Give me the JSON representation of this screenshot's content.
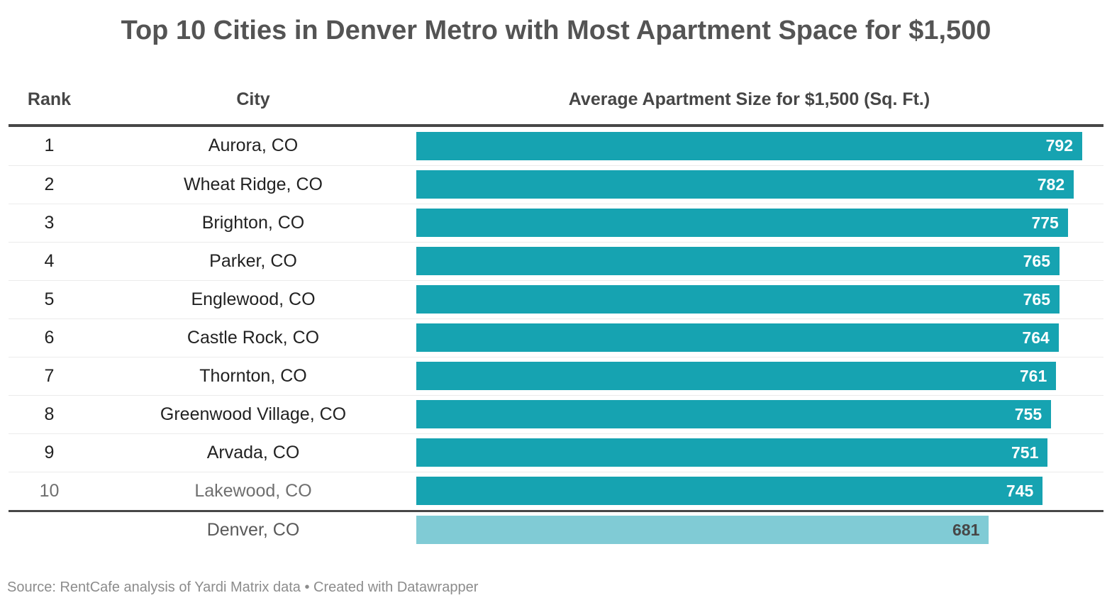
{
  "title": "Top 10 Cities in Denver Metro with Most Apartment Space for $1,500",
  "chart_data": {
    "type": "bar",
    "title": "Top 10 Cities in Denver Metro with Most Apartment Space for $1,500",
    "columns": [
      "Rank",
      "City",
      "Average Apartment Size for $1,500 (Sq. Ft.)"
    ],
    "xlabel": "Average Apartment Size for $1,500 (Sq. Ft.)",
    "xlim": [
      0,
      792
    ],
    "grid": false,
    "legend": "none",
    "bar_color": "#16a3b1",
    "comparison_bar_color": "#80cbd5",
    "accent_line_color": "#474747",
    "rows": [
      {
        "rank": "1",
        "city": "Aurora, CO",
        "value": 792,
        "muted": false
      },
      {
        "rank": "2",
        "city": "Wheat Ridge, CO",
        "value": 782,
        "muted": false
      },
      {
        "rank": "3",
        "city": "Brighton, CO",
        "value": 775,
        "muted": false
      },
      {
        "rank": "4",
        "city": "Parker, CO",
        "value": 765,
        "muted": false
      },
      {
        "rank": "5",
        "city": "Englewood, CO",
        "value": 765,
        "muted": false
      },
      {
        "rank": "6",
        "city": "Castle Rock, CO",
        "value": 764,
        "muted": false
      },
      {
        "rank": "7",
        "city": "Thornton, CO",
        "value": 761,
        "muted": false
      },
      {
        "rank": "8",
        "city": "Greenwood Village, CO",
        "value": 755,
        "muted": false
      },
      {
        "rank": "9",
        "city": "Arvada, CO",
        "value": 751,
        "muted": false
      },
      {
        "rank": "10",
        "city": "Lakewood, CO",
        "value": 745,
        "muted": true
      }
    ],
    "comparison_row": {
      "rank": "",
      "city": "Denver, CO",
      "value": 681
    }
  },
  "footer": {
    "source": "Source: RentCafe analysis of Yardi Matrix data • Created with Datawrapper"
  }
}
